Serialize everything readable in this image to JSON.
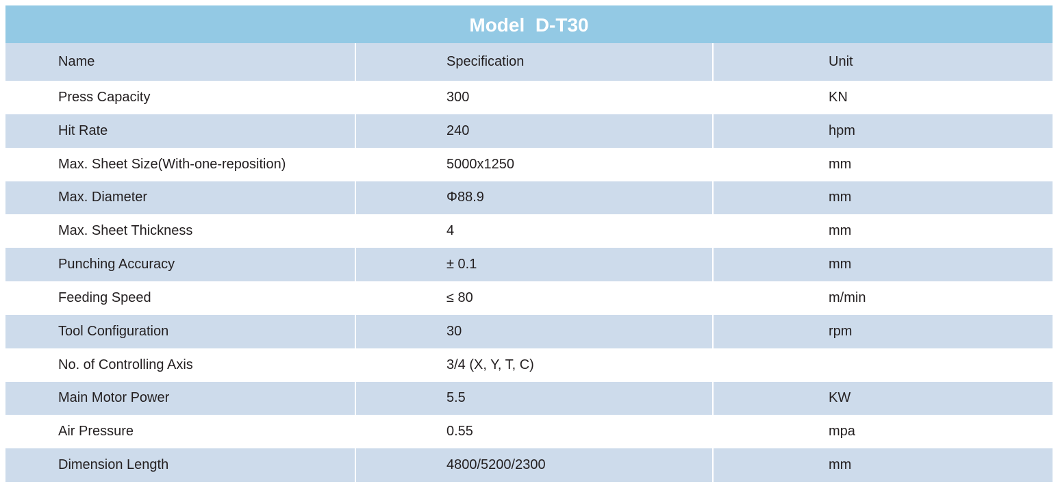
{
  "header": {
    "title": "Model  D-T30"
  },
  "table": {
    "columns": [
      "Name",
      "Specification",
      "Unit"
    ],
    "rows": [
      [
        "Press Capacity",
        "300",
        "KN"
      ],
      [
        "Hit Rate",
        "240",
        "hpm"
      ],
      [
        "Max. Sheet Size(With-one-reposition)",
        "5000x1250",
        "mm"
      ],
      [
        "Max. Diameter",
        "Φ88.9",
        "mm"
      ],
      [
        "Max. Sheet Thickness",
        "4",
        "mm"
      ],
      [
        "Punching Accuracy",
        "± 0.1",
        "mm"
      ],
      [
        "Feeding Speed",
        "≤ 80",
        "m/min"
      ],
      [
        "Tool Configuration",
        "30",
        "rpm"
      ],
      [
        "No. of Controlling Axis",
        "3/4 (X, Y, T, C)"
      ],
      [
        "Main Motor Power",
        "5.5",
        "KW"
      ],
      [
        "Air Pressure",
        "0.55",
        "mpa"
      ],
      [
        "Dimension Length",
        "4800/5200/2300",
        "mm"
      ]
    ]
  }
}
